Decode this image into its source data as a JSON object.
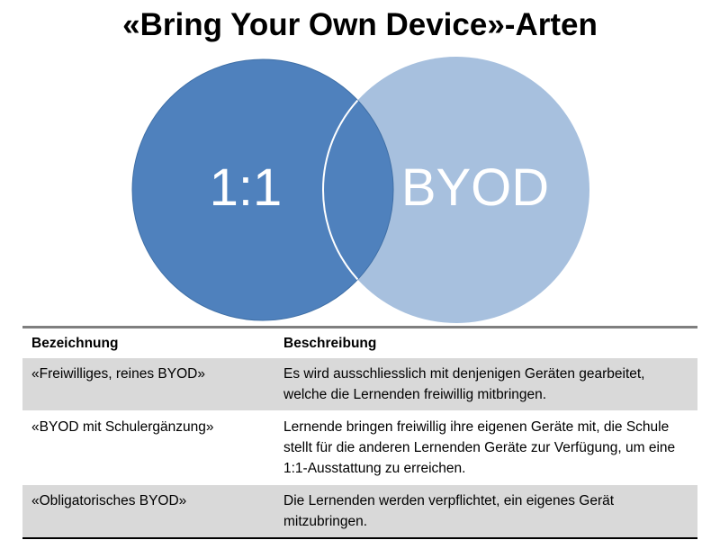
{
  "title": "«Bring Your Own Device»-Arten",
  "venn": {
    "left": {
      "label": "1:1",
      "color": "#4f81bd"
    },
    "right": {
      "label": "BYOD",
      "color": "#a7c0de"
    }
  },
  "table": {
    "headers": [
      "Bezeichnung",
      "Beschreibung"
    ],
    "rows": [
      {
        "name": "«Freiwilliges, reines BYOD»",
        "description": "Es wird ausschliesslich mit denjenigen Geräten gearbeitet, welche die Lernenden freiwillig mitbringen."
      },
      {
        "name": "«BYOD mit Schulergänzung»",
        "description": "Lernende bringen freiwillig ihre eigenen Geräte mit, die Schule stellt für die anderen Lernenden Geräte zur Verfügung, um eine 1:1-Ausstattung zu erreichen."
      },
      {
        "name": "«Obligatorisches BYOD»",
        "description": "Die Lernenden werden verpflichtet, ein eigenes  Gerät mitzubringen."
      }
    ]
  }
}
